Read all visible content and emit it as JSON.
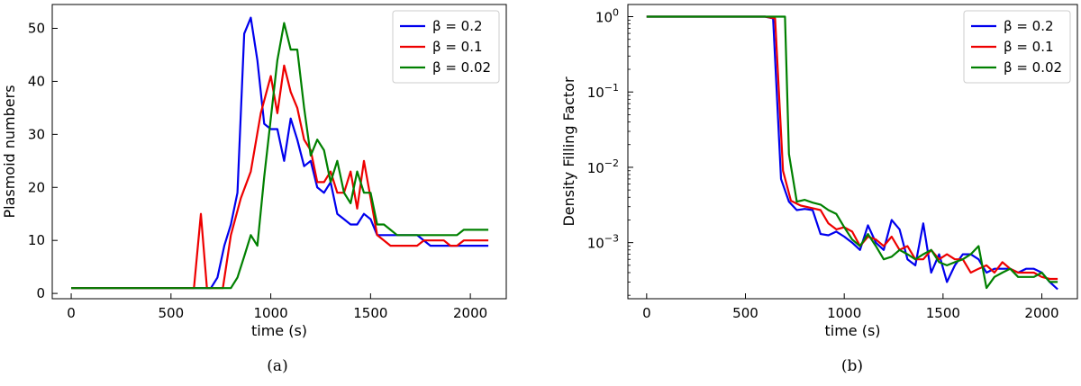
{
  "colors": {
    "blue": "#0000ee",
    "red": "#ee0000",
    "green": "#008000"
  },
  "chart_data": [
    {
      "type": "line",
      "caption": "(a)",
      "xlabel": "time (s)",
      "ylabel": "Plasmoid numbers",
      "xlim": [
        -95,
        2180
      ],
      "ylim": [
        -1,
        54.5
      ],
      "xticks": [
        0,
        500,
        1000,
        1500,
        2000
      ],
      "yticks": [
        0,
        10,
        20,
        30,
        40,
        50
      ],
      "yscale": "linear",
      "legend_position": "top-right",
      "series": [
        {
          "name": "β = 0.2",
          "color": "#0000ee",
          "x": [
            0,
            600,
            650,
            700,
            733,
            767,
            800,
            833,
            867,
            900,
            933,
            967,
            1000,
            1033,
            1067,
            1100,
            1133,
            1167,
            1200,
            1233,
            1267,
            1300,
            1333,
            1367,
            1400,
            1433,
            1467,
            1500,
            1533,
            1567,
            1600,
            1633,
            1667,
            1700,
            1733,
            1767,
            1800,
            1833,
            1867,
            1900,
            1933,
            1967,
            2000,
            2033,
            2067,
            2090
          ],
          "y": [
            1,
            1,
            1,
            1,
            3,
            9,
            13,
            19,
            49,
            52,
            44,
            32,
            31,
            31,
            25,
            33,
            29,
            24,
            25,
            20,
            19,
            21,
            15,
            14,
            13,
            13,
            15,
            14,
            11,
            11,
            11,
            11,
            11,
            11,
            11,
            10,
            9,
            9,
            9,
            9,
            9,
            9,
            9,
            9,
            9,
            9
          ]
        },
        {
          "name": "β = 0.1",
          "color": "#ee0000",
          "x": [
            0,
            580,
            615,
            650,
            680,
            720,
            760,
            800,
            850,
            900,
            950,
            1000,
            1033,
            1067,
            1100,
            1133,
            1167,
            1200,
            1233,
            1267,
            1300,
            1333,
            1367,
            1400,
            1433,
            1467,
            1500,
            1533,
            1567,
            1600,
            1633,
            1667,
            1700,
            1733,
            1767,
            1800,
            1833,
            1867,
            1900,
            1933,
            1967,
            2000,
            2033,
            2067,
            2090
          ],
          "y": [
            1,
            1,
            1,
            15,
            1,
            1,
            1,
            11,
            18,
            23,
            34,
            41,
            34,
            43,
            38,
            35,
            29,
            27,
            21,
            21,
            23,
            19,
            19,
            23,
            16,
            25,
            18,
            11,
            10,
            9,
            9,
            9,
            9,
            9,
            10,
            10,
            10,
            10,
            9,
            9,
            10,
            10,
            10,
            10,
            10
          ]
        },
        {
          "name": "β = 0.02",
          "color": "#008000",
          "x": [
            0,
            600,
            700,
            800,
            833,
            867,
            900,
            933,
            967,
            1000,
            1033,
            1067,
            1100,
            1133,
            1167,
            1200,
            1233,
            1267,
            1300,
            1333,
            1367,
            1400,
            1433,
            1467,
            1500,
            1533,
            1567,
            1600,
            1633,
            1667,
            1700,
            1733,
            1767,
            1800,
            1833,
            1867,
            1900,
            1933,
            1967,
            2000,
            2033,
            2067,
            2090
          ],
          "y": [
            1,
            1,
            1,
            1,
            3,
            7,
            11,
            9,
            22,
            33,
            44,
            51,
            46,
            46,
            35,
            26,
            29,
            27,
            21,
            25,
            19,
            17,
            23,
            19,
            19,
            13,
            13,
            12,
            11,
            11,
            11,
            11,
            11,
            11,
            11,
            11,
            11,
            11,
            12,
            12,
            12,
            12,
            12
          ]
        }
      ]
    },
    {
      "type": "line",
      "caption": "(b)",
      "xlabel": "time (s)",
      "ylabel": "Density Filling Factor",
      "xlim": [
        -95,
        2180
      ],
      "ylim": [
        0.00018,
        1.45
      ],
      "xticks": [
        0,
        500,
        1000,
        1500,
        2000
      ],
      "ytick_values": [
        1,
        0.1,
        0.01,
        0.001
      ],
      "ytick_labels": [
        {
          "base": "10",
          "exp": "0"
        },
        {
          "base": "10",
          "exp": "−1"
        },
        {
          "base": "10",
          "exp": "−2"
        },
        {
          "base": "10",
          "exp": "−3"
        }
      ],
      "yscale": "log",
      "legend_position": "top-right",
      "series": [
        {
          "name": "β = 0.2",
          "color": "#0000ee",
          "x": [
            0,
            600,
            640,
            680,
            720,
            760,
            800,
            840,
            880,
            920,
            960,
            1000,
            1040,
            1080,
            1120,
            1160,
            1200,
            1240,
            1280,
            1320,
            1360,
            1400,
            1440,
            1480,
            1520,
            1560,
            1600,
            1640,
            1680,
            1720,
            1760,
            1800,
            1840,
            1880,
            1920,
            1960,
            2000,
            2040,
            2080
          ],
          "y": [
            1.0,
            1.0,
            0.95,
            0.007,
            0.0035,
            0.0027,
            0.0028,
            0.0027,
            0.0013,
            0.00125,
            0.0014,
            0.0012,
            0.001,
            0.0008,
            0.0017,
            0.001,
            0.0008,
            0.002,
            0.0015,
            0.0006,
            0.0005,
            0.0018,
            0.0004,
            0.0007,
            0.0003,
            0.0005,
            0.0007,
            0.0007,
            0.0006,
            0.0004,
            0.00045,
            0.00045,
            0.00045,
            0.0004,
            0.00045,
            0.00045,
            0.0004,
            0.0003,
            0.00024
          ]
        },
        {
          "name": "β = 0.1",
          "color": "#ee0000",
          "x": [
            0,
            600,
            650,
            690,
            730,
            780,
            830,
            880,
            920,
            960,
            1000,
            1040,
            1080,
            1120,
            1160,
            1200,
            1240,
            1280,
            1320,
            1360,
            1400,
            1440,
            1480,
            1520,
            1560,
            1600,
            1640,
            1680,
            1720,
            1760,
            1800,
            1840,
            1880,
            1920,
            1960,
            2000,
            2040,
            2080
          ],
          "y": [
            1.0,
            1.0,
            0.95,
            0.009,
            0.0036,
            0.0031,
            0.0029,
            0.0027,
            0.0018,
            0.0015,
            0.0016,
            0.0014,
            0.0009,
            0.0012,
            0.0011,
            0.0009,
            0.0012,
            0.0008,
            0.0009,
            0.0006,
            0.0006,
            0.0008,
            0.0006,
            0.0007,
            0.0006,
            0.0006,
            0.0004,
            0.00045,
            0.0005,
            0.0004,
            0.00055,
            0.00045,
            0.0004,
            0.0004,
            0.0004,
            0.00035,
            0.00033,
            0.00033
          ]
        },
        {
          "name": "β = 0.02",
          "color": "#008000",
          "x": [
            0,
            600,
            700,
            720,
            760,
            800,
            840,
            880,
            920,
            960,
            1000,
            1040,
            1080,
            1120,
            1160,
            1200,
            1240,
            1280,
            1320,
            1360,
            1400,
            1440,
            1480,
            1520,
            1560,
            1600,
            1640,
            1680,
            1720,
            1760,
            1800,
            1840,
            1880,
            1920,
            1960,
            2000,
            2040,
            2080
          ],
          "y": [
            1.0,
            1.0,
            1.0,
            0.015,
            0.0035,
            0.0037,
            0.0034,
            0.0032,
            0.0027,
            0.0024,
            0.0016,
            0.0011,
            0.0009,
            0.0013,
            0.0009,
            0.0006,
            0.00065,
            0.0008,
            0.0007,
            0.0006,
            0.0007,
            0.0008,
            0.00055,
            0.0005,
            0.00055,
            0.0006,
            0.0007,
            0.0009,
            0.00025,
            0.00035,
            0.0004,
            0.00045,
            0.00035,
            0.00035,
            0.00035,
            0.0004,
            0.0003,
            0.0003
          ]
        }
      ]
    }
  ]
}
